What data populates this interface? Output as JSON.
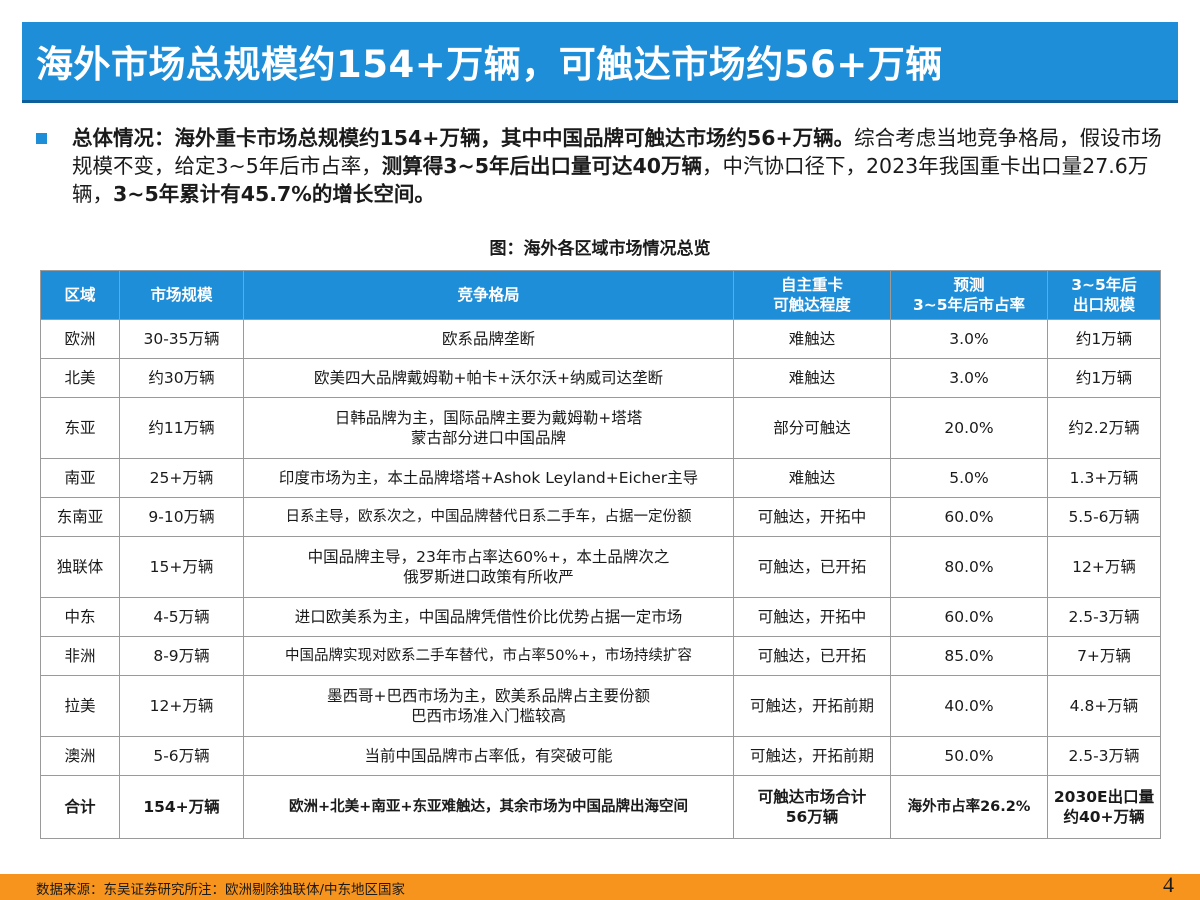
{
  "title": "海外市场总规模约154+万辆，可触达市场约56+万辆",
  "summary": {
    "p1": "总体情况：海外重卡市场总规模约154+万辆，其中中国品牌可触达市场约56+万辆。",
    "p2": "综合考虑当地竞争格局，假设市场规模不变，给定3~5年后市占率，",
    "p3": "测算得3~5年后出口量可达40万辆",
    "p4": "，中汽协口径下，2023年我国重卡出口量27.6万辆，",
    "p5": "3~5年累计有45.7%的增长空间。"
  },
  "figure_title": "图：海外各区域市场情况总览",
  "table": {
    "headers": {
      "region": "区域",
      "size": "市场规模",
      "competition": "竞争格局",
      "reach1": "自主重卡",
      "reach2": "可触达程度",
      "share1": "预测",
      "share2": "3~5年后市占率",
      "export1": "3~5年后",
      "export2": "出口规模"
    },
    "rows": [
      {
        "region": "欧洲",
        "size": "30-35万辆",
        "comp1": "欧系品牌垄断",
        "comp2": "",
        "reach": "难触达",
        "share": "3.0%",
        "export": "约1万辆"
      },
      {
        "region": "北美",
        "size": "约30万辆",
        "comp1": "欧美四大品牌戴姆勒+帕卡+沃尔沃+纳威司达垄断",
        "comp2": "",
        "reach": "难触达",
        "share": "3.0%",
        "export": "约1万辆"
      },
      {
        "region": "东亚",
        "size": "约11万辆",
        "comp1": "日韩品牌为主，国际品牌主要为戴姆勒+塔塔",
        "comp2": "蒙古部分进口中国品牌",
        "reach": "部分可触达",
        "share": "20.0%",
        "export": "约2.2万辆"
      },
      {
        "region": "南亚",
        "size": "25+万辆",
        "comp1": "印度市场为主，本土品牌塔塔+Ashok Leyland+Eicher主导",
        "comp2": "",
        "reach": "难触达",
        "share": "5.0%",
        "export": "1.3+万辆"
      },
      {
        "region": "东南亚",
        "size": "9-10万辆",
        "comp1": "日系主导，欧系次之，中国品牌替代日系二手车，占据一定份额",
        "comp2": "",
        "reach": "可触达，开拓中",
        "share": "60.0%",
        "export": "5.5-6万辆"
      },
      {
        "region": "独联体",
        "size": "15+万辆",
        "comp1": "中国品牌主导，23年市占率达60%+，本土品牌次之",
        "comp2": "俄罗斯进口政策有所收严",
        "reach": "可触达，已开拓",
        "share": "80.0%",
        "export": "12+万辆"
      },
      {
        "region": "中东",
        "size": "4-5万辆",
        "comp1": "进口欧美系为主，中国品牌凭借性价比优势占据一定市场",
        "comp2": "",
        "reach": "可触达，开拓中",
        "share": "60.0%",
        "export": "2.5-3万辆"
      },
      {
        "region": "非洲",
        "size": "8-9万辆",
        "comp1": "中国品牌实现对欧系二手车替代，市占率50%+，市场持续扩容",
        "comp2": "",
        "reach": "可触达，已开拓",
        "share": "85.0%",
        "export": "7+万辆"
      },
      {
        "region": "拉美",
        "size": "12+万辆",
        "comp1": "墨西哥+巴西市场为主，欧美系品牌占主要份额",
        "comp2": "巴西市场准入门槛较高",
        "reach": "可触达，开拓前期",
        "share": "40.0%",
        "export": "4.8+万辆"
      },
      {
        "region": "澳洲",
        "size": "5-6万辆",
        "comp1": "当前中国品牌市占率低，有突破可能",
        "comp2": "",
        "reach": "可触达，开拓前期",
        "share": "50.0%",
        "export": "2.5-3万辆"
      }
    ],
    "total": {
      "region": "合计",
      "size": "154+万辆",
      "comp": "欧洲+北美+南亚+东亚难触达，其余市场为中国品牌出海空间",
      "reach1": "可触达市场合计",
      "reach2": "56万辆",
      "share": "海外市占率26.2%",
      "export1": "2030E出口量",
      "export2": "约40+万辆"
    }
  },
  "source": "数据来源：东吴证券研究所注：欧洲剔除独联体/中东地区国家",
  "page_number": "4",
  "colors": {
    "accent": "#1f8ed8",
    "footer": "#f7941d"
  }
}
